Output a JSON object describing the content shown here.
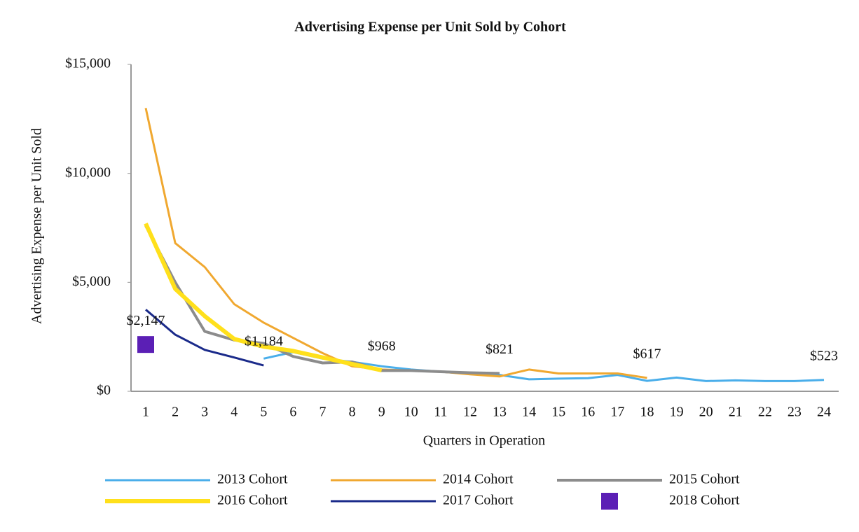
{
  "chart_data": {
    "type": "line",
    "title": "Advertising Expense per Unit Sold by Cohort",
    "x_label": "Quarters in Operation",
    "y_label": "Advertising Expense per Unit Sold",
    "categories": [
      "1",
      "2",
      "3",
      "4",
      "5",
      "6",
      "7",
      "8",
      "9",
      "10",
      "11",
      "12",
      "13",
      "14",
      "15",
      "16",
      "17",
      "18",
      "19",
      "20",
      "21",
      "22",
      "23",
      "24"
    ],
    "ylim": [
      0,
      15000
    ],
    "yticks": [
      {
        "value": 0,
        "label": "$0"
      },
      {
        "value": 5000,
        "label": "$5,000"
      },
      {
        "value": 10000,
        "label": "$10,000"
      },
      {
        "value": 15000,
        "label": "$15,000"
      }
    ],
    "grid": false,
    "legend": "bottom",
    "series": [
      {
        "name": "2013 Cohort",
        "color": "#4aaeea",
        "values": [
          null,
          null,
          null,
          null,
          1500,
          1800,
          1500,
          1350,
          1150,
          1000,
          900,
          800,
          750,
          550,
          580,
          600,
          750,
          480,
          630,
          470,
          500,
          470,
          470,
          523
        ],
        "value_labels": [
          null,
          null,
          null,
          null,
          null,
          null,
          null,
          null,
          null,
          null,
          null,
          null,
          null,
          null,
          null,
          null,
          null,
          null,
          null,
          null,
          null,
          null,
          null,
          "$523"
        ]
      },
      {
        "name": "2014 Cohort",
        "color": "#f0a830",
        "values": [
          13000,
          6800,
          5700,
          4000,
          3150,
          2450,
          1750,
          1150,
          1000,
          950,
          900,
          780,
          680,
          1000,
          820,
          820,
          820,
          617,
          null,
          null,
          null,
          null,
          null,
          null
        ],
        "value_labels": [
          null,
          null,
          null,
          null,
          null,
          null,
          null,
          null,
          null,
          null,
          null,
          null,
          null,
          null,
          null,
          null,
          null,
          "$617",
          null,
          null,
          null,
          null,
          null,
          null
        ]
      },
      {
        "name": "2015 Cohort",
        "color": "#8c8c8c",
        "values": [
          7600,
          5000,
          2750,
          2350,
          2200,
          1600,
          1300,
          1350,
          950,
          950,
          900,
          850,
          821,
          null,
          null,
          null,
          null,
          null,
          null,
          null,
          null,
          null,
          null,
          null
        ],
        "value_labels": [
          null,
          null,
          null,
          null,
          null,
          null,
          null,
          null,
          null,
          null,
          null,
          null,
          "$821",
          null,
          null,
          null,
          null,
          null,
          null,
          null,
          null,
          null,
          null,
          null
        ]
      },
      {
        "name": "2016 Cohort",
        "color": "#ffe01b",
        "values": [
          7700,
          4700,
          3450,
          2400,
          2050,
          1850,
          1550,
          1250,
          968,
          null,
          null,
          null,
          null,
          null,
          null,
          null,
          null,
          null,
          null,
          null,
          null,
          null,
          null,
          null
        ],
        "value_labels": [
          null,
          null,
          null,
          null,
          null,
          null,
          null,
          null,
          "$968",
          null,
          null,
          null,
          null,
          null,
          null,
          null,
          null,
          null,
          null,
          null,
          null,
          null,
          null,
          null
        ]
      },
      {
        "name": "2017 Cohort",
        "color": "#1a2a8a",
        "values": [
          3750,
          2600,
          1900,
          1550,
          1184,
          null,
          null,
          null,
          null,
          null,
          null,
          null,
          null,
          null,
          null,
          null,
          null,
          null,
          null,
          null,
          null,
          null,
          null,
          null
        ],
        "value_labels": [
          null,
          null,
          null,
          null,
          "$1,184",
          null,
          null,
          null,
          null,
          null,
          null,
          null,
          null,
          null,
          null,
          null,
          null,
          null,
          null,
          null,
          null,
          null,
          null,
          null
        ]
      },
      {
        "name": "2018 Cohort",
        "color": "#5b1fb5",
        "marker": "square",
        "values": [
          2147,
          null,
          null,
          null,
          null,
          null,
          null,
          null,
          null,
          null,
          null,
          null,
          null,
          null,
          null,
          null,
          null,
          null,
          null,
          null,
          null,
          null,
          null,
          null
        ],
        "value_labels": [
          "$2,147",
          null,
          null,
          null,
          null,
          null,
          null,
          null,
          null,
          null,
          null,
          null,
          null,
          null,
          null,
          null,
          null,
          null,
          null,
          null,
          null,
          null,
          null,
          null
        ]
      }
    ]
  }
}
